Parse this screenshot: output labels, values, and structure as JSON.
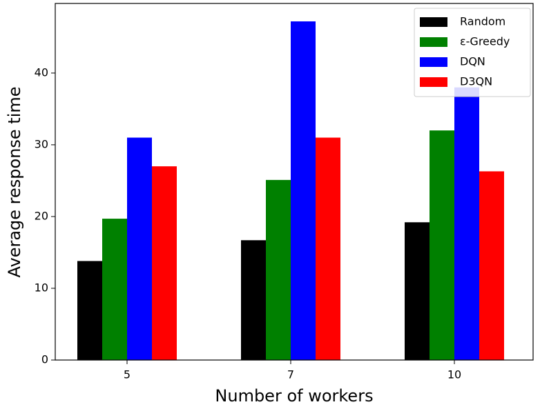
{
  "chart_data": {
    "type": "bar",
    "xlabel": "Number of workers",
    "ylabel": "Average response time",
    "categories": [
      "5",
      "7",
      "10"
    ],
    "series": [
      {
        "name": "Random",
        "color": "#000000",
        "values": [
          13.8,
          16.7,
          19.2
        ]
      },
      {
        "name": "ε-Greedy",
        "color": "#008000",
        "values": [
          19.7,
          25.1,
          32.0
        ]
      },
      {
        "name": "DQN",
        "color": "#0000ff",
        "values": [
          31.0,
          47.2,
          38.0
        ]
      },
      {
        "name": "D3QN",
        "color": "#ff0000",
        "values": [
          27.0,
          31.0,
          26.3
        ]
      }
    ],
    "ylim": [
      0,
      49.7
    ],
    "yticks": [
      0,
      10,
      20,
      30,
      40
    ],
    "legend": "upper right"
  }
}
